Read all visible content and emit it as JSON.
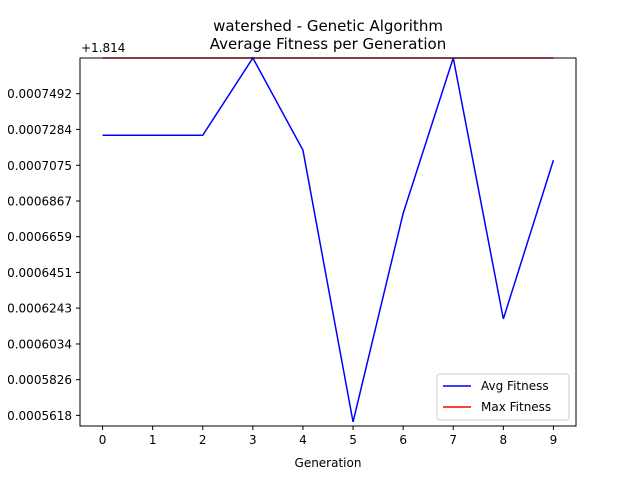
{
  "chart_data": {
    "type": "line",
    "title_line1": "watershed - Genetic Algorithm",
    "title_line2": "Average Fitness per Generation",
    "xlabel": "Generation",
    "ylabel": "",
    "offset_label": "+1.814",
    "x": [
      0,
      1,
      2,
      3,
      4,
      5,
      6,
      7,
      8,
      9
    ],
    "xlim": [
      -0.45,
      9.45
    ],
    "ylim": [
      0.00055562,
      0.00077
    ],
    "x_tick_labels": [
      "0",
      "1",
      "2",
      "3",
      "4",
      "5",
      "6",
      "7",
      "8",
      "9"
    ],
    "y_ticks": [
      0.0007492,
      0.0007284,
      0.0007075,
      0.0006867,
      0.0006659,
      0.0006451,
      0.0006243,
      0.0006034,
      0.0005826,
      0.0005618
    ],
    "y_tick_labels": [
      "0.0007492",
      "0.0007284",
      "0.0007075",
      "0.0006867",
      "0.0006659",
      "0.0006451",
      "0.0006243",
      "0.0006034",
      "0.0005826",
      "0.0005618"
    ],
    "series": [
      {
        "name": "Avg Fitness",
        "color": "#0000ff",
        "values": [
          0.000725,
          0.000725,
          0.000725,
          0.00077,
          0.0007163,
          0.000558,
          0.0006795,
          0.00077,
          0.000618,
          0.0007105
        ]
      },
      {
        "name": "Max Fitness",
        "color": "#ff0000",
        "values": [
          0.00077,
          0.00077,
          0.00077,
          0.00077,
          0.00077,
          0.00077,
          0.00077,
          0.00077,
          0.00077,
          0.00077
        ]
      }
    ],
    "grid": false,
    "legend_position": "lower-right"
  }
}
